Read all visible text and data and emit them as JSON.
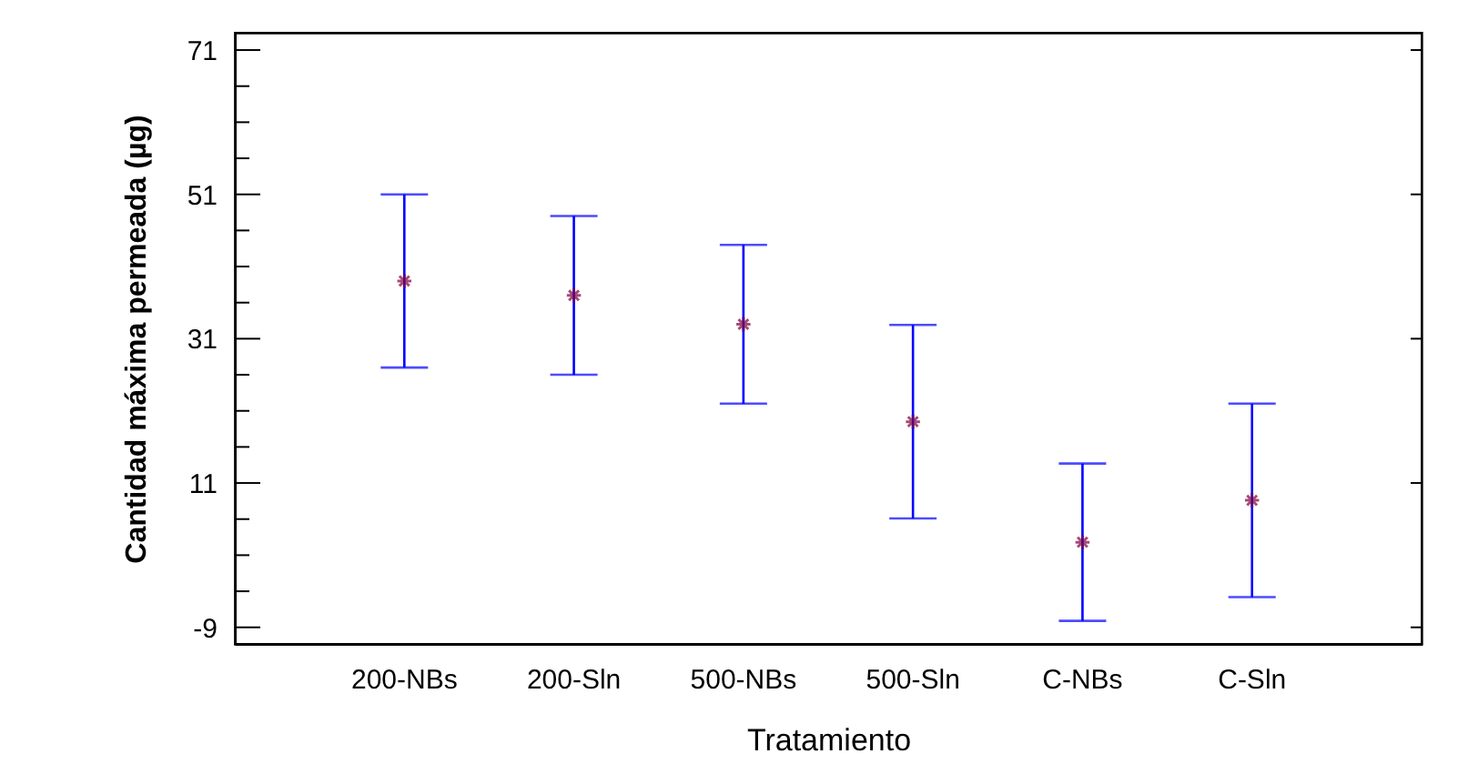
{
  "chart_data": {
    "type": "scatter",
    "xlabel": "Tratamiento",
    "ylabel": "Cantidad máxima permeada (µg)",
    "categories": [
      "200-NBs",
      "200-Sln",
      "500-NBs",
      "500-Sln",
      "C-NBs",
      "C-Sln"
    ],
    "series": [
      {
        "color": "#800040",
        "values": [
          39,
          37,
          33,
          19.5,
          2.8,
          8.6
        ],
        "errors": [
          12,
          11,
          11,
          13.4,
          10.9,
          13.4
        ]
      }
    ],
    "ylim": [
      -11.3,
      73.4
    ],
    "yticks": [
      {
        "value": -9,
        "label": "-9"
      },
      {
        "value": -4,
        "label": null
      },
      {
        "value": 1,
        "label": null
      },
      {
        "value": 6,
        "label": null
      },
      {
        "value": 11,
        "label": "11"
      },
      {
        "value": 16,
        "label": null
      },
      {
        "value": 21,
        "label": null
      },
      {
        "value": 26,
        "label": null
      },
      {
        "value": 31,
        "label": "31"
      },
      {
        "value": 36,
        "label": null
      },
      {
        "value": 41,
        "label": null
      },
      {
        "value": 46,
        "label": null
      },
      {
        "value": 51,
        "label": "51"
      },
      {
        "value": 56,
        "label": null
      },
      {
        "value": 61,
        "label": null
      },
      {
        "value": 66,
        "label": null
      },
      {
        "value": 71,
        "label": "71"
      }
    ],
    "marker": "cross",
    "grid": false
  }
}
